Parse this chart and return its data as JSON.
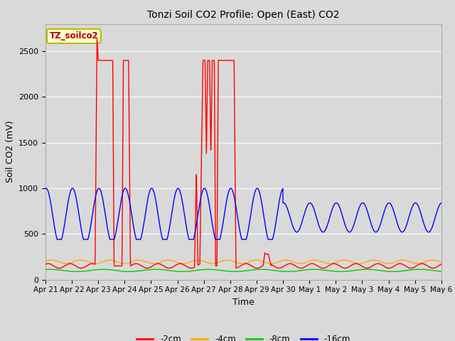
{
  "title": "Tonzi Soil CO2 Profile: Open (East) CO2",
  "ylabel": "Soil CO2 (mV)",
  "xlabel": "Time",
  "legend_label": "TZ_soilco2",
  "series_labels": [
    "-2cm",
    "-4cm",
    "-8cm",
    "-16cm"
  ],
  "series_colors": [
    "#ff0000",
    "#ffaa00",
    "#00cc00",
    "#0000ff"
  ],
  "ylim": [
    0,
    2800
  ],
  "background_color": "#d9d9d9",
  "plot_bg_color": "#d9d9d9",
  "grid_color": "#ffffff",
  "n_points": 2160,
  "total_days": 15
}
